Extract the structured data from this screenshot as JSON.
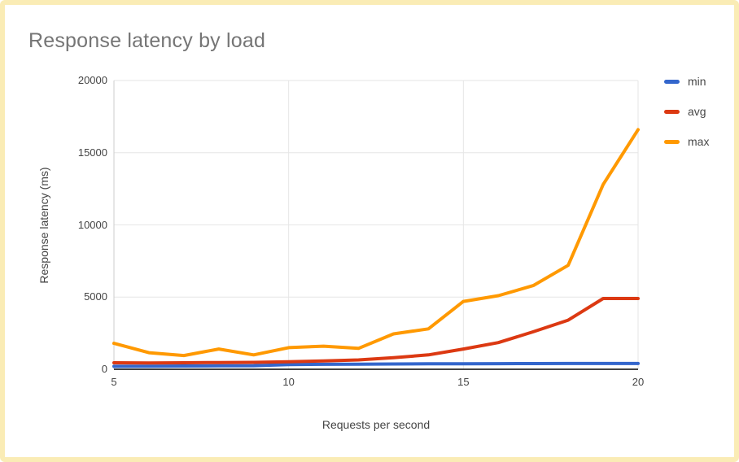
{
  "card": {
    "border_color": "#FAECB5",
    "background": "#ffffff"
  },
  "chart_data": {
    "type": "line",
    "title": "Response latency by load",
    "xlabel": "Requests per second",
    "ylabel": "Response latency (ms)",
    "x": [
      5,
      6,
      7,
      8,
      9,
      10,
      11,
      12,
      13,
      14,
      15,
      16,
      17,
      18,
      19,
      20
    ],
    "series": [
      {
        "name": "min",
        "color": "#3366CC",
        "values": [
          200,
          215,
          225,
          235,
          250,
          320,
          345,
          355,
          365,
          375,
          385,
          390,
          395,
          400,
          400,
          400
        ]
      },
      {
        "name": "avg",
        "color": "#DC3912",
        "values": [
          450,
          440,
          450,
          470,
          480,
          520,
          580,
          650,
          800,
          1000,
          1400,
          1850,
          2600,
          3400,
          4900,
          4900
        ]
      },
      {
        "name": "max",
        "color": "#FF9900",
        "values": [
          1800,
          1150,
          950,
          1400,
          1000,
          1500,
          1600,
          1450,
          2450,
          2800,
          4700,
          5100,
          5800,
          7200,
          12800,
          16600
        ]
      }
    ],
    "xlim": [
      5,
      20
    ],
    "ylim": [
      0,
      20000
    ],
    "x_ticks": [
      5,
      10,
      15,
      20
    ],
    "y_ticks": [
      0,
      5000,
      10000,
      15000,
      20000
    ],
    "grid": true,
    "legend_position": "right",
    "grid_color": "#E6E6E6",
    "axis_line_color": "#CCCCCC",
    "baseline_color": "#424242"
  }
}
